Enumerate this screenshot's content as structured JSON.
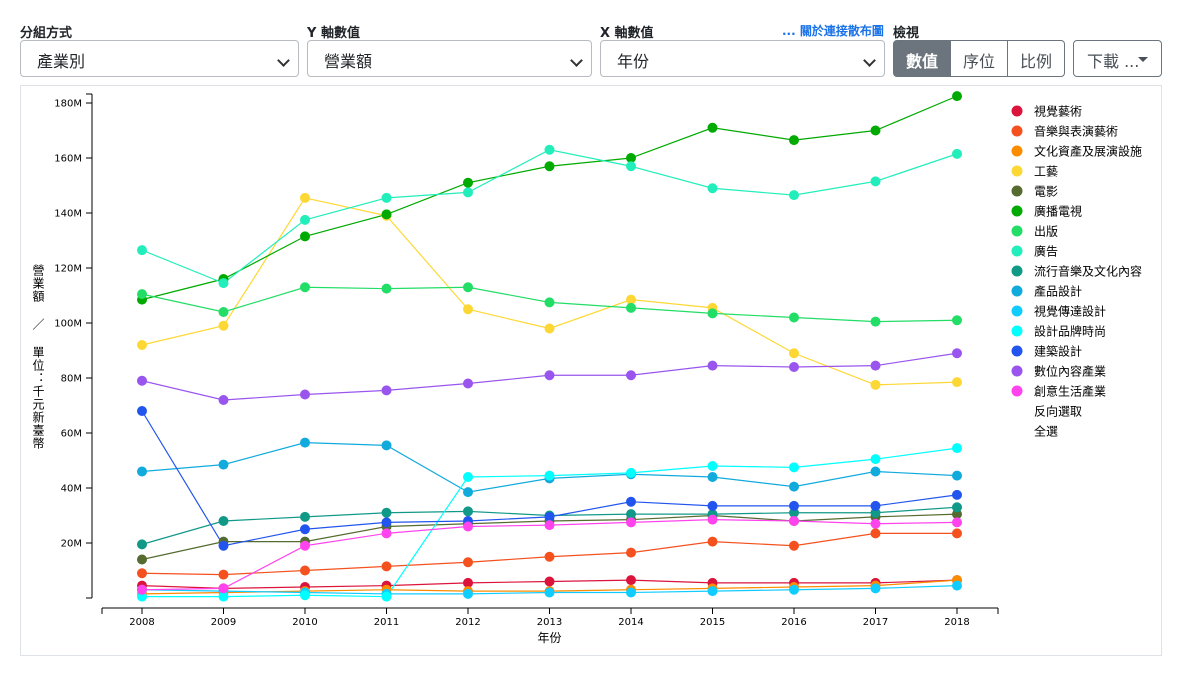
{
  "controls": {
    "group_label": "分組方式",
    "group_value": "產業別",
    "y_label": "Y 軸數值",
    "y_value": "營業額",
    "x_label": "X 軸數值",
    "x_value": "年份",
    "scatter_link": "... 關於連接散布圖",
    "view_label": "檢視",
    "view_options": [
      "數值",
      "序位",
      "比例"
    ],
    "view_selected": "數值",
    "download_label": "下載 ..."
  },
  "chart_data": {
    "type": "line",
    "xlabel": "年份",
    "ylabel": "營業額 ／ 單位：千元新臺幣",
    "x": [
      2008,
      2009,
      2010,
      2011,
      2012,
      2013,
      2014,
      2015,
      2016,
      2017,
      2018
    ],
    "ylim": [
      0,
      182
    ],
    "yticks": [
      "20M",
      "40M",
      "60M",
      "80M",
      "100M",
      "120M",
      "140M",
      "160M",
      "180M"
    ],
    "ytick_values": [
      20,
      40,
      60,
      80,
      100,
      120,
      140,
      160,
      180
    ],
    "unit_note": "values in millions",
    "legend_position": "right",
    "legend_extra": [
      "反向選取",
      "全選"
    ],
    "series": [
      {
        "name": "視覺藝術",
        "color": "#dc143c",
        "values": [
          4.5,
          3.5,
          4,
          4.5,
          5.5,
          6,
          6.5,
          5.5,
          5.5,
          5.5,
          6.5
        ]
      },
      {
        "name": "音樂與表演藝術",
        "color": "#f4511e",
        "values": [
          9,
          8.5,
          10,
          11.5,
          13,
          15,
          16.5,
          20.5,
          19,
          23.5,
          23.5
        ]
      },
      {
        "name": "文化資產及展演設施",
        "color": "#fb8c00",
        "values": [
          1.5,
          2,
          2.5,
          3,
          2.5,
          2.5,
          3,
          3.5,
          4,
          4.5,
          6.5
        ]
      },
      {
        "name": "工藝",
        "color": "#fdd835",
        "values": [
          92,
          99,
          145.5,
          139,
          105,
          98,
          108.5,
          105.5,
          89,
          77.5,
          78.5
        ]
      },
      {
        "name": "電影",
        "color": "#556b2f",
        "values": [
          14,
          20.5,
          20.5,
          26,
          27,
          28,
          28.5,
          30,
          28,
          29.5,
          30.5
        ]
      },
      {
        "name": "廣播電視",
        "color": "#00aa00",
        "values": [
          108.5,
          116,
          131.5,
          139.5,
          151,
          157,
          160,
          171,
          166.5,
          170,
          182.5
        ]
      },
      {
        "name": "出版",
        "color": "#22dd66",
        "values": [
          110.5,
          104,
          113,
          112.5,
          113,
          107.5,
          105.5,
          103.5,
          102,
          100.5,
          101
        ]
      },
      {
        "name": "廣告",
        "color": "#22eebb",
        "values": [
          126.5,
          114.5,
          137.5,
          145.5,
          147.5,
          163,
          157,
          149,
          146.5,
          151.5,
          161.5
        ]
      },
      {
        "name": "流行音樂及文化內容",
        "color": "#119988",
        "values": [
          19.5,
          28,
          29.5,
          31,
          31.5,
          30,
          30.5,
          30.5,
          31,
          31,
          33
        ]
      },
      {
        "name": "產品設計",
        "color": "#11aadd",
        "values": [
          46,
          48.5,
          56.5,
          55.5,
          38.5,
          43.5,
          45,
          44,
          40.5,
          46,
          44.5
        ]
      },
      {
        "name": "視覺傳達設計",
        "color": "#11ccff",
        "values": [
          3,
          2.5,
          2,
          1.5,
          1.5,
          2,
          2,
          2.5,
          3,
          3.5,
          4.5
        ]
      },
      {
        "name": "設計品牌時尚",
        "color": "#00ffff",
        "values": [
          0.5,
          0.5,
          1,
          0.5,
          44,
          44.5,
          45.5,
          48,
          47.5,
          50.5,
          54.5
        ]
      },
      {
        "name": "建築設計",
        "color": "#2255ee",
        "values": [
          68,
          19,
          25,
          27.5,
          28,
          29.5,
          35,
          33.5,
          33.5,
          33.5,
          37.5
        ]
      },
      {
        "name": "數位內容產業",
        "color": "#9955ee",
        "values": [
          79,
          72,
          74,
          75.5,
          78,
          81,
          81,
          84.5,
          84,
          84.5,
          89
        ]
      },
      {
        "name": "創意生活產業",
        "color": "#ff44ee",
        "values": [
          3,
          3.5,
          19,
          23.5,
          26,
          26.5,
          27.5,
          28.5,
          28,
          27,
          27.5
        ]
      }
    ]
  }
}
